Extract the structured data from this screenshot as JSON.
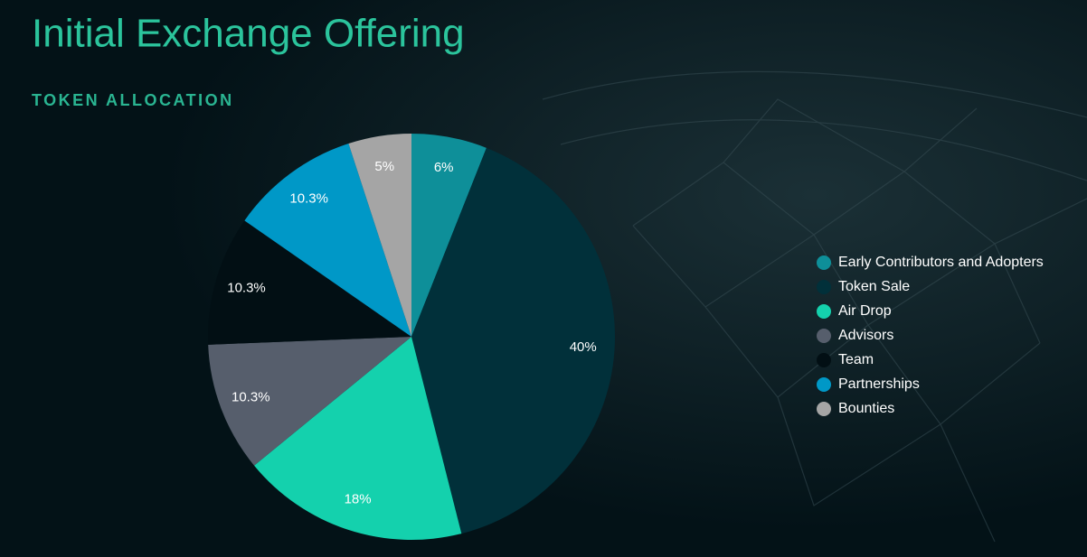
{
  "chart_data": {
    "type": "pie",
    "title": "Initial Exchange Offering",
    "subtitle": "TOKEN ALLOCATION",
    "categories": [
      "Early Contributors and Adopters",
      "Token Sale",
      "Air Drop",
      "Advisors",
      "Team",
      "Partnerships",
      "Bounties"
    ],
    "values": [
      6,
      40,
      18,
      10.3,
      10.3,
      10.3,
      5
    ],
    "value_labels": [
      "6%",
      "40%",
      "18%",
      "10.3%",
      "10.3%",
      "10.3%",
      "5%"
    ],
    "colors": [
      "#0e8f99",
      "#01303a",
      "#14d1ad",
      "#565e6c",
      "#020f14",
      "#0098c7",
      "#a5a5a5"
    ],
    "legend": "right"
  }
}
